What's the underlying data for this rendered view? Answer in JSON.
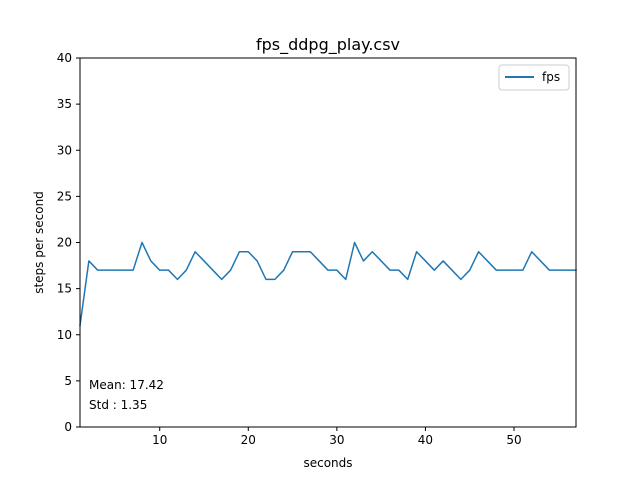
{
  "chart_data": {
    "type": "line",
    "title": "fps_ddpg_play.csv",
    "xlabel": "seconds",
    "ylabel": "steps per second",
    "xlim": [
      1,
      57
    ],
    "ylim": [
      0,
      40
    ],
    "x_ticks": [
      10,
      20,
      30,
      40,
      50
    ],
    "y_ticks": [
      0,
      5,
      10,
      15,
      20,
      25,
      30,
      35,
      40
    ],
    "grid": false,
    "legend_position": "top-right",
    "series": [
      {
        "name": "fps",
        "color": "#1f77b4",
        "x": [
          1,
          2,
          3,
          4,
          5,
          6,
          7,
          8,
          9,
          10,
          11,
          12,
          13,
          14,
          15,
          16,
          17,
          18,
          19,
          20,
          21,
          22,
          23,
          24,
          25,
          26,
          27,
          28,
          29,
          30,
          31,
          32,
          33,
          34,
          35,
          36,
          37,
          38,
          39,
          40,
          41,
          42,
          43,
          44,
          45,
          46,
          47,
          48,
          49,
          50,
          51,
          52,
          53,
          54,
          55,
          56,
          57
        ],
        "values": [
          11,
          18,
          17,
          17,
          17,
          17,
          17,
          20,
          18,
          17,
          17,
          16,
          17,
          19,
          18,
          17,
          16,
          17,
          19,
          19,
          18,
          16,
          16,
          17,
          19,
          19,
          19,
          18,
          17,
          17,
          16,
          20,
          18,
          19,
          18,
          17,
          17,
          16,
          19,
          18,
          17,
          18,
          17,
          16,
          17,
          19,
          18,
          17,
          17,
          17,
          17,
          19,
          18,
          17,
          17,
          17,
          17
        ]
      }
    ],
    "annotations": [
      "Mean: 17.42",
      "Std : 1.35"
    ]
  }
}
